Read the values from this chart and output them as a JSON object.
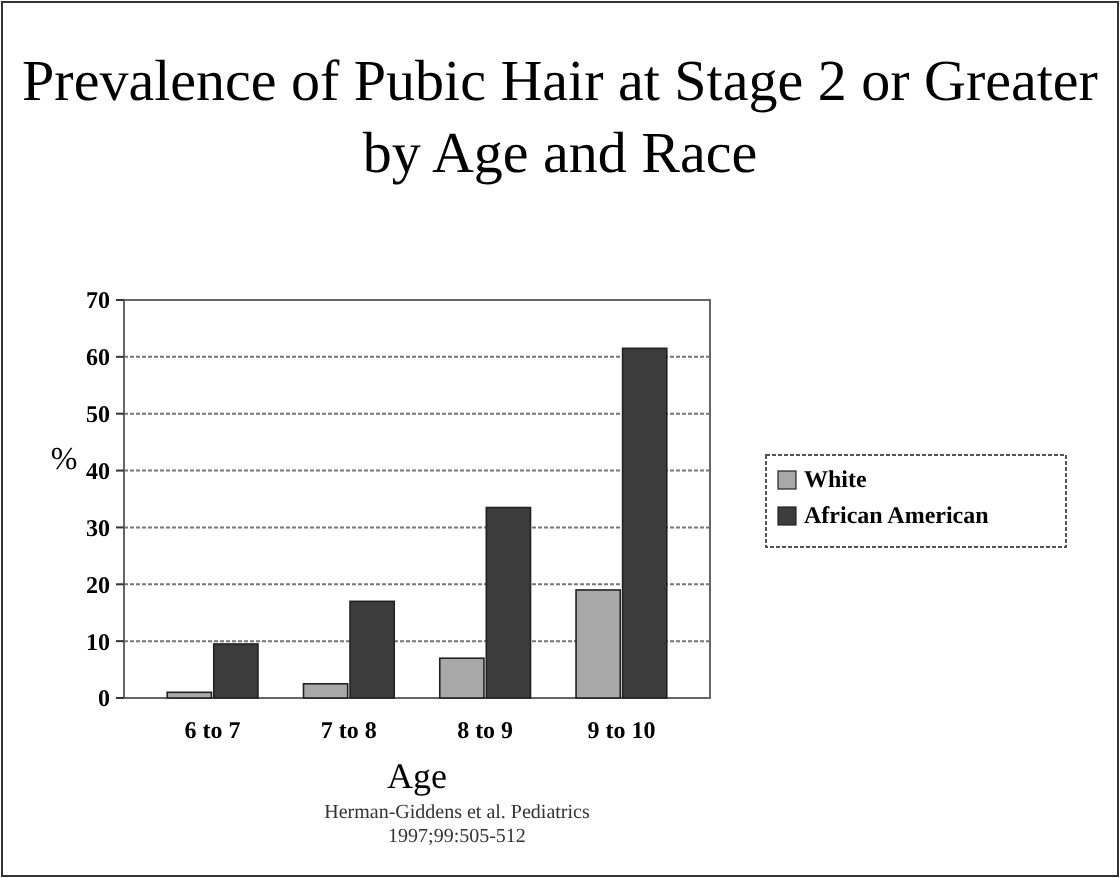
{
  "chart_data": {
    "type": "bar",
    "title": "Prevalence of Pubic Hair at Stage 2 or Greater by Age and Race",
    "xlabel": "Age",
    "ylabel": "%",
    "categories": [
      "6 to 7",
      "7 to 8",
      "8 to 9",
      "9 to 10"
    ],
    "series": [
      {
        "name": "White",
        "color": "#a8a8a8",
        "values": [
          1,
          2.5,
          7,
          19
        ]
      },
      {
        "name": "African American",
        "color": "#3c3c3c",
        "values": [
          9.5,
          17,
          33.5,
          61.5
        ]
      }
    ],
    "ylim": [
      0,
      70
    ],
    "yticks": [
      0,
      10,
      20,
      30,
      40,
      50,
      60,
      70
    ],
    "grid": "y",
    "legend": "right",
    "annotations": [
      "Herman-Giddens et al. Pediatrics",
      "1997;99:505-512"
    ]
  }
}
